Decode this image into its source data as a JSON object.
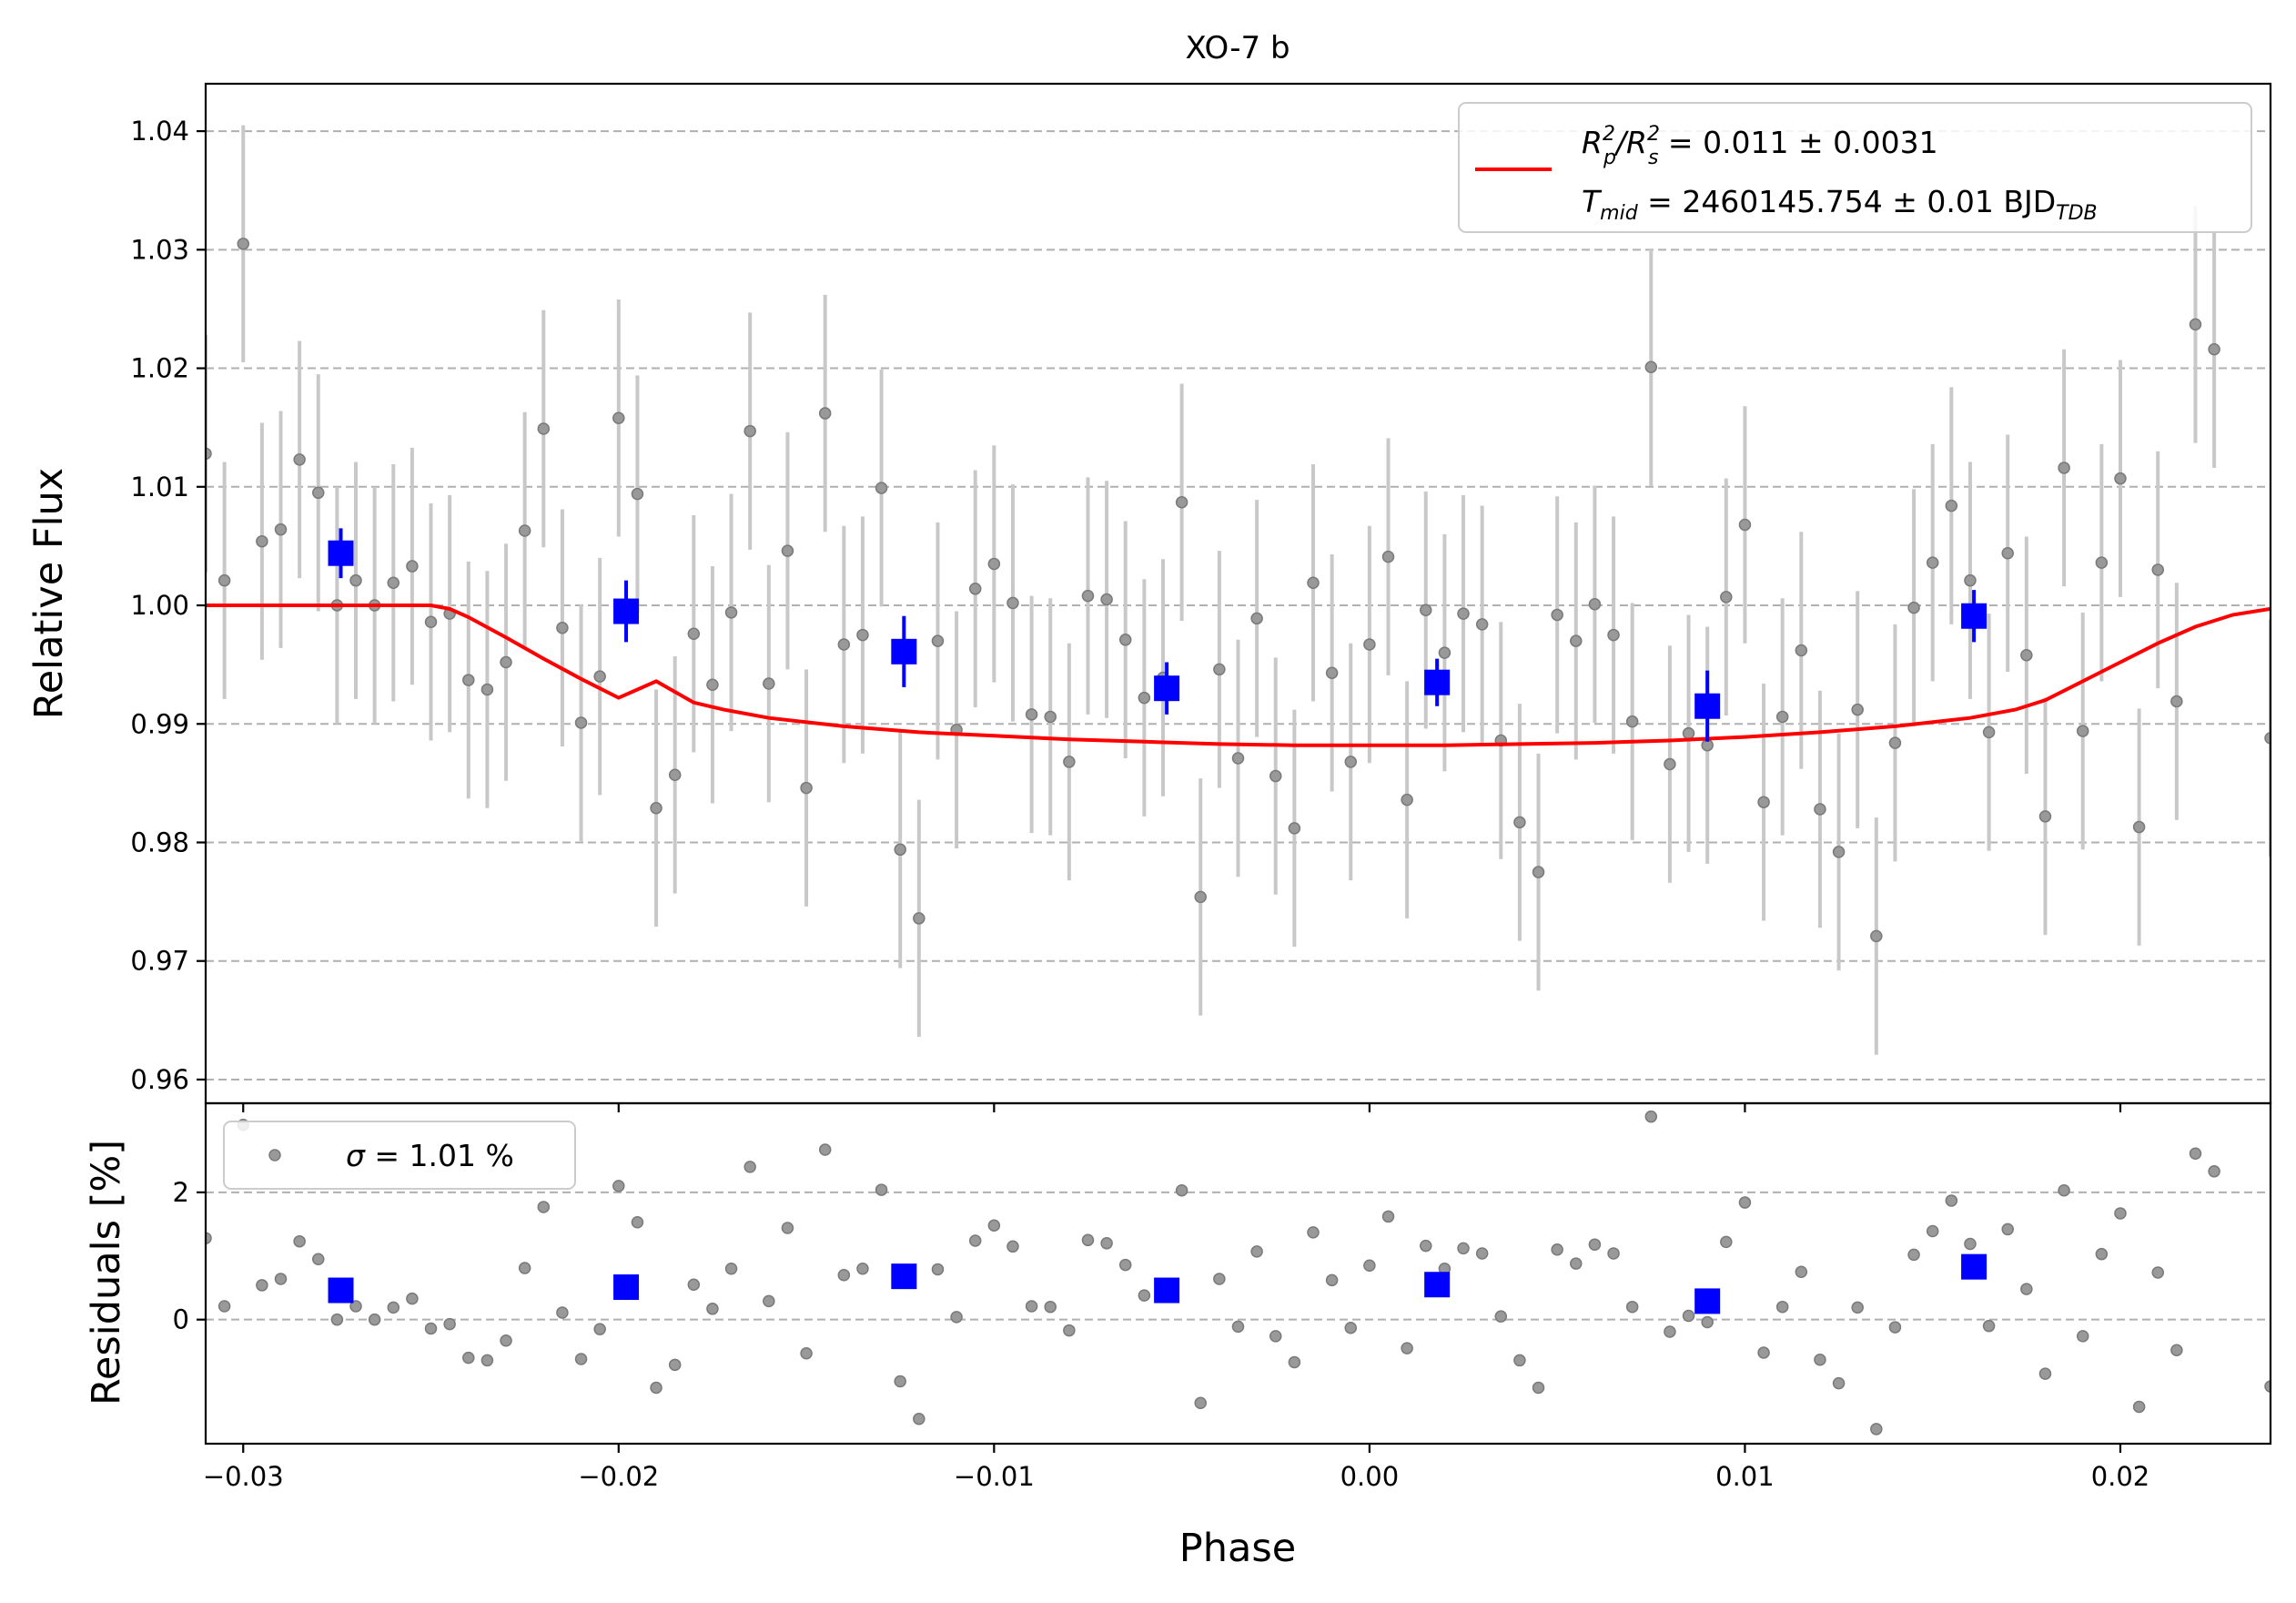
{
  "chart_data": {
    "type": "scatter",
    "title": "XO-7 b",
    "xlabel": "Phase",
    "top_panel": {
      "ylabel": "Relative Flux",
      "xlim": [
        -0.031,
        0.024
      ],
      "ylim": [
        0.958,
        1.044
      ],
      "yticks": [
        "1.04",
        "1.03",
        "1.02",
        "1.01",
        "1.00",
        "0.99",
        "0.98",
        "0.97",
        "0.96"
      ],
      "grid": "horizontal dashed",
      "legend_position": "top-right",
      "legend": {
        "ratio_lhs_main": "R",
        "ratio_lhs_sub1": "p",
        "ratio_lhs_sup1": "2",
        "ratio_slash": "/R",
        "ratio_lhs_sub2": "s",
        "ratio_lhs_sup2": "2",
        "ratio_value": " = 0.011 ± 0.0031",
        "tmid_main": "T",
        "tmid_sub": "mid",
        "tmid_value": " = 2460145.754 ± 0.01 BJD",
        "tmid_unit_sub": "TDB"
      },
      "model_color": "#ff0000",
      "data_color": "#808080",
      "binned_color": "#0000ff",
      "raw_points": [
        [
          -0.031,
          1.0128,
          0.01
        ],
        [
          -0.0305,
          1.0021,
          0.01
        ],
        [
          -0.03,
          1.0305,
          0.01
        ],
        [
          -0.0295,
          1.0054,
          0.01
        ],
        [
          -0.029,
          1.0064,
          0.01
        ],
        [
          -0.0285,
          1.0123,
          0.01
        ],
        [
          -0.028,
          1.0095,
          0.01
        ],
        [
          -0.0275,
          1.0,
          0.01
        ],
        [
          -0.027,
          1.0021,
          0.01
        ],
        [
          -0.0265,
          1.0,
          0.01
        ],
        [
          -0.026,
          1.0019,
          0.01
        ],
        [
          -0.0255,
          1.0033,
          0.01
        ],
        [
          -0.025,
          0.9986,
          0.01
        ],
        [
          -0.0245,
          0.9993,
          0.01
        ],
        [
          -0.024,
          0.9937,
          0.01
        ],
        [
          -0.0235,
          0.9929,
          0.01
        ],
        [
          -0.023,
          0.9952,
          0.01
        ],
        [
          -0.0225,
          1.0063,
          0.01
        ],
        [
          -0.022,
          1.0149,
          0.01
        ],
        [
          -0.0215,
          0.9981,
          0.01
        ],
        [
          -0.021,
          0.9901,
          0.01
        ],
        [
          -0.0205,
          0.994,
          0.01
        ],
        [
          -0.02,
          1.0158,
          0.01
        ],
        [
          -0.0195,
          1.0094,
          0.01
        ],
        [
          -0.019,
          0.9829,
          0.01
        ],
        [
          -0.0185,
          0.9857,
          0.01
        ],
        [
          -0.018,
          0.9976,
          0.01
        ],
        [
          -0.0175,
          0.9933,
          0.01
        ],
        [
          -0.017,
          0.9994,
          0.01
        ],
        [
          -0.0165,
          1.0147,
          0.01
        ],
        [
          -0.016,
          0.9934,
          0.01
        ],
        [
          -0.0155,
          1.0046,
          0.01
        ],
        [
          -0.015,
          0.9846,
          0.01
        ],
        [
          -0.0145,
          1.0162,
          0.01
        ],
        [
          -0.014,
          0.9967,
          0.01
        ],
        [
          -0.0135,
          0.9975,
          0.01
        ],
        [
          -0.013,
          1.0099,
          0.01
        ],
        [
          -0.0125,
          0.9794,
          0.01
        ],
        [
          -0.012,
          0.9736,
          0.01
        ],
        [
          -0.0115,
          0.997,
          0.01
        ],
        [
          -0.011,
          0.9895,
          0.01
        ],
        [
          -0.0105,
          1.0014,
          0.01
        ],
        [
          -0.01,
          1.0035,
          0.01
        ],
        [
          -0.0095,
          1.0002,
          0.01
        ],
        [
          -0.009,
          0.9908,
          0.01
        ],
        [
          -0.0085,
          0.9906,
          0.01
        ],
        [
          -0.008,
          0.9868,
          0.01
        ],
        [
          -0.0075,
          1.0008,
          0.01
        ],
        [
          -0.007,
          1.0005,
          0.01
        ],
        [
          -0.0065,
          0.9971,
          0.01
        ],
        [
          -0.006,
          0.9922,
          0.01
        ],
        [
          -0.0055,
          0.9939,
          0.01
        ],
        [
          -0.005,
          1.0087,
          0.01
        ],
        [
          -0.0045,
          0.9754,
          0.01
        ],
        [
          -0.004,
          0.9946,
          0.01
        ],
        [
          -0.0035,
          0.9871,
          0.01
        ],
        [
          -0.003,
          0.9989,
          0.01
        ],
        [
          -0.0025,
          0.9856,
          0.01
        ],
        [
          -0.002,
          0.9812,
          0.01
        ],
        [
          -0.0015,
          1.0019,
          0.01
        ],
        [
          -0.001,
          0.9943,
          0.01
        ],
        [
          -0.0005,
          0.9868,
          0.01
        ],
        [
          0.0,
          0.9967,
          0.01
        ],
        [
          0.0005,
          1.0041,
          0.01
        ],
        [
          0.001,
          0.9836,
          0.01
        ],
        [
          0.0015,
          0.9996,
          0.01
        ],
        [
          0.002,
          0.996,
          0.01
        ],
        [
          0.0025,
          0.9993,
          0.01
        ],
        [
          0.003,
          0.9984,
          0.01
        ],
        [
          0.0035,
          0.9886,
          0.01
        ],
        [
          0.004,
          0.9817,
          0.01
        ],
        [
          0.0045,
          0.9775,
          0.01
        ],
        [
          0.005,
          0.9992,
          0.01
        ],
        [
          0.0055,
          0.997,
          0.01
        ],
        [
          0.006,
          1.0001,
          0.01
        ],
        [
          0.0065,
          0.9975,
          0.01
        ],
        [
          0.007,
          0.9902,
          0.01
        ],
        [
          0.0075,
          1.0201,
          0.01
        ],
        [
          0.008,
          0.9866,
          0.01
        ],
        [
          0.0085,
          0.9892,
          0.01
        ],
        [
          0.009,
          0.9882,
          0.01
        ],
        [
          0.0095,
          1.0007,
          0.01
        ],
        [
          0.01,
          1.0068,
          0.01
        ],
        [
          0.0105,
          0.9834,
          0.01
        ],
        [
          0.011,
          0.9906,
          0.01
        ],
        [
          0.0115,
          0.9962,
          0.01
        ],
        [
          0.012,
          0.9828,
          0.01
        ],
        [
          0.0125,
          0.9792,
          0.01
        ],
        [
          0.013,
          0.9912,
          0.01
        ],
        [
          0.0135,
          0.9721,
          0.01
        ],
        [
          0.014,
          0.9884,
          0.01
        ],
        [
          0.0145,
          0.9998,
          0.01
        ],
        [
          0.015,
          1.0036,
          0.01
        ],
        [
          0.0155,
          1.0084,
          0.01
        ],
        [
          0.016,
          1.0021,
          0.01
        ],
        [
          0.0165,
          0.9893,
          0.01
        ],
        [
          0.017,
          1.0044,
          0.01
        ],
        [
          0.0175,
          0.9958,
          0.01
        ],
        [
          0.018,
          0.9822,
          0.01
        ],
        [
          0.0185,
          1.0116,
          0.01
        ],
        [
          0.019,
          0.9894,
          0.01
        ],
        [
          0.0195,
          1.0036,
          0.01
        ],
        [
          0.02,
          1.0107,
          0.01
        ],
        [
          0.0205,
          0.9813,
          0.01
        ],
        [
          0.021,
          1.003,
          0.01
        ],
        [
          0.0215,
          0.9919,
          0.01
        ],
        [
          0.022,
          1.0237,
          0.01
        ],
        [
          0.0225,
          1.0216,
          0.01
        ],
        [
          0.024,
          0.9888,
          0.01
        ]
      ],
      "binned_points": [
        [
          -0.0274,
          1.0044,
          0.0021
        ],
        [
          -0.0198,
          0.9995,
          0.0026
        ],
        [
          -0.0124,
          0.9961,
          0.003
        ],
        [
          -0.0054,
          0.993,
          0.0022
        ],
        [
          0.0018,
          0.9935,
          0.002
        ],
        [
          0.009,
          0.9915,
          0.003
        ],
        [
          0.0161,
          0.9991,
          0.0022
        ]
      ],
      "model": [
        [
          -0.031,
          1.0
        ],
        [
          -0.025,
          1.0
        ],
        [
          -0.0245,
          0.9997
        ],
        [
          -0.024,
          0.999
        ],
        [
          -0.023,
          0.9973
        ],
        [
          -0.022,
          0.9955
        ],
        [
          -0.021,
          0.9938
        ],
        [
          -0.02,
          0.9922
        ],
        [
          -0.019,
          0.9936
        ],
        [
          -0.018,
          0.9918
        ],
        [
          -0.0172,
          0.9912
        ],
        [
          -0.016,
          0.9905
        ],
        [
          -0.014,
          0.9898
        ],
        [
          -0.012,
          0.9893
        ],
        [
          -0.01,
          0.989
        ],
        [
          -0.008,
          0.9887
        ],
        [
          -0.006,
          0.9885
        ],
        [
          -0.004,
          0.9883
        ],
        [
          -0.002,
          0.9882
        ],
        [
          0.0,
          0.9882
        ],
        [
          0.002,
          0.9882
        ],
        [
          0.004,
          0.9883
        ],
        [
          0.006,
          0.9884
        ],
        [
          0.008,
          0.9886
        ],
        [
          0.01,
          0.9889
        ],
        [
          0.012,
          0.9893
        ],
        [
          0.014,
          0.9898
        ],
        [
          0.016,
          0.9905
        ],
        [
          0.0172,
          0.9912
        ],
        [
          0.018,
          0.992
        ],
        [
          0.019,
          0.9936
        ],
        [
          0.02,
          0.9952
        ],
        [
          0.021,
          0.9968
        ],
        [
          0.022,
          0.9982
        ],
        [
          0.023,
          0.9992
        ],
        [
          0.024,
          0.9997
        ]
      ]
    },
    "bottom_panel": {
      "ylabel": "Residuals [%]",
      "ylim": [
        -1.95,
        3.4
      ],
      "yticks": [
        "2",
        "0"
      ],
      "grid": "horizontal dashed",
      "legend_position": "top-left",
      "legend": {
        "sigma_symbol": "σ",
        "sigma_value": " = 1.01 %"
      },
      "raw_residuals": [
        [
          -0.031,
          1.28
        ],
        [
          -0.0305,
          0.21
        ],
        [
          -0.03,
          3.06
        ],
        [
          -0.0295,
          0.54
        ],
        [
          -0.029,
          0.64
        ],
        [
          -0.0285,
          1.23
        ],
        [
          -0.028,
          0.95
        ],
        [
          -0.0275,
          0.0
        ],
        [
          -0.027,
          0.21
        ],
        [
          -0.0265,
          0.0
        ],
        [
          -0.026,
          0.19
        ],
        [
          -0.0255,
          0.33
        ],
        [
          -0.025,
          -0.14
        ],
        [
          -0.0245,
          -0.07
        ],
        [
          -0.024,
          -0.6
        ],
        [
          -0.0235,
          -0.64
        ],
        [
          -0.023,
          -0.33
        ],
        [
          -0.0225,
          0.81
        ],
        [
          -0.022,
          1.77
        ],
        [
          -0.0215,
          0.11
        ],
        [
          -0.021,
          -0.62
        ],
        [
          -0.0205,
          -0.15
        ],
        [
          -0.02,
          2.1
        ],
        [
          -0.0195,
          1.53
        ],
        [
          -0.019,
          -1.07
        ],
        [
          -0.0185,
          -0.71
        ],
        [
          -0.018,
          0.55
        ],
        [
          -0.0175,
          0.17
        ],
        [
          -0.017,
          0.8
        ],
        [
          -0.0165,
          2.4
        ],
        [
          -0.016,
          0.29
        ],
        [
          -0.0155,
          1.44
        ],
        [
          -0.015,
          -0.53
        ],
        [
          -0.0145,
          2.67
        ],
        [
          -0.014,
          0.7
        ],
        [
          -0.0135,
          0.8
        ],
        [
          -0.013,
          2.04
        ],
        [
          -0.0125,
          -0.97
        ],
        [
          -0.012,
          -1.56
        ],
        [
          -0.0115,
          0.79
        ],
        [
          -0.011,
          0.04
        ],
        [
          -0.0105,
          1.24
        ],
        [
          -0.01,
          1.48
        ],
        [
          -0.0095,
          1.15
        ],
        [
          -0.009,
          0.21
        ],
        [
          -0.0085,
          0.2
        ],
        [
          -0.008,
          -0.17
        ],
        [
          -0.0075,
          1.25
        ],
        [
          -0.007,
          1.2
        ],
        [
          -0.0065,
          0.86
        ],
        [
          -0.006,
          0.38
        ],
        [
          -0.0055,
          0.55
        ],
        [
          -0.005,
          2.03
        ],
        [
          -0.0045,
          -1.31
        ],
        [
          -0.004,
          0.64
        ],
        [
          -0.0035,
          -0.11
        ],
        [
          -0.003,
          1.07
        ],
        [
          -0.0025,
          -0.26
        ],
        [
          -0.002,
          -0.67
        ],
        [
          -0.0015,
          1.37
        ],
        [
          -0.001,
          0.62
        ],
        [
          -0.0005,
          -0.13
        ],
        [
          0.0,
          0.85
        ],
        [
          0.0005,
          1.62
        ],
        [
          0.001,
          -0.45
        ],
        [
          0.0015,
          1.16
        ],
        [
          0.002,
          0.8
        ],
        [
          0.0025,
          1.12
        ],
        [
          0.003,
          1.04
        ],
        [
          0.0035,
          0.05
        ],
        [
          0.004,
          -0.64
        ],
        [
          0.0045,
          -1.07
        ],
        [
          0.005,
          1.1
        ],
        [
          0.0055,
          0.88
        ],
        [
          0.006,
          1.18
        ],
        [
          0.0065,
          1.04
        ],
        [
          0.007,
          0.2
        ],
        [
          0.0075,
          3.19
        ],
        [
          0.008,
          -0.19
        ],
        [
          0.0085,
          0.06
        ],
        [
          0.009,
          -0.04
        ],
        [
          0.0095,
          1.22
        ],
        [
          0.01,
          1.84
        ],
        [
          0.0105,
          -0.52
        ],
        [
          0.011,
          0.2
        ],
        [
          0.0115,
          0.75
        ],
        [
          0.012,
          -0.63
        ],
        [
          0.0125,
          -1.0
        ],
        [
          0.013,
          0.19
        ],
        [
          0.0135,
          -1.72
        ],
        [
          0.014,
          -0.12
        ],
        [
          0.0145,
          1.02
        ],
        [
          0.015,
          1.39
        ],
        [
          0.0155,
          1.87
        ],
        [
          0.016,
          1.19
        ],
        [
          0.0165,
          -0.1
        ],
        [
          0.017,
          1.42
        ],
        [
          0.0175,
          0.48
        ],
        [
          0.018,
          -0.85
        ],
        [
          0.0185,
          2.03
        ],
        [
          0.019,
          -0.26
        ],
        [
          0.0195,
          1.03
        ],
        [
          0.02,
          1.67
        ],
        [
          0.0205,
          -1.37
        ],
        [
          0.021,
          0.74
        ],
        [
          0.0215,
          -0.48
        ],
        [
          0.022,
          2.61
        ],
        [
          0.0225,
          2.33
        ],
        [
          0.024,
          -1.05
        ]
      ],
      "binned_residuals": [
        [
          -0.0274,
          0.46
        ],
        [
          -0.0198,
          0.51
        ],
        [
          -0.0124,
          0.68
        ],
        [
          -0.0054,
          0.46
        ],
        [
          0.0018,
          0.55
        ],
        [
          0.009,
          0.29
        ],
        [
          0.0161,
          0.83
        ]
      ]
    },
    "xticks": [
      {
        "value": -0.03,
        "label": "−0.03"
      },
      {
        "value": -0.02,
        "label": "−0.02"
      },
      {
        "value": -0.01,
        "label": "−0.01"
      },
      {
        "value": 0.0,
        "label": "0.00"
      },
      {
        "value": 0.01,
        "label": "0.01"
      },
      {
        "value": 0.02,
        "label": "0.02"
      }
    ]
  }
}
